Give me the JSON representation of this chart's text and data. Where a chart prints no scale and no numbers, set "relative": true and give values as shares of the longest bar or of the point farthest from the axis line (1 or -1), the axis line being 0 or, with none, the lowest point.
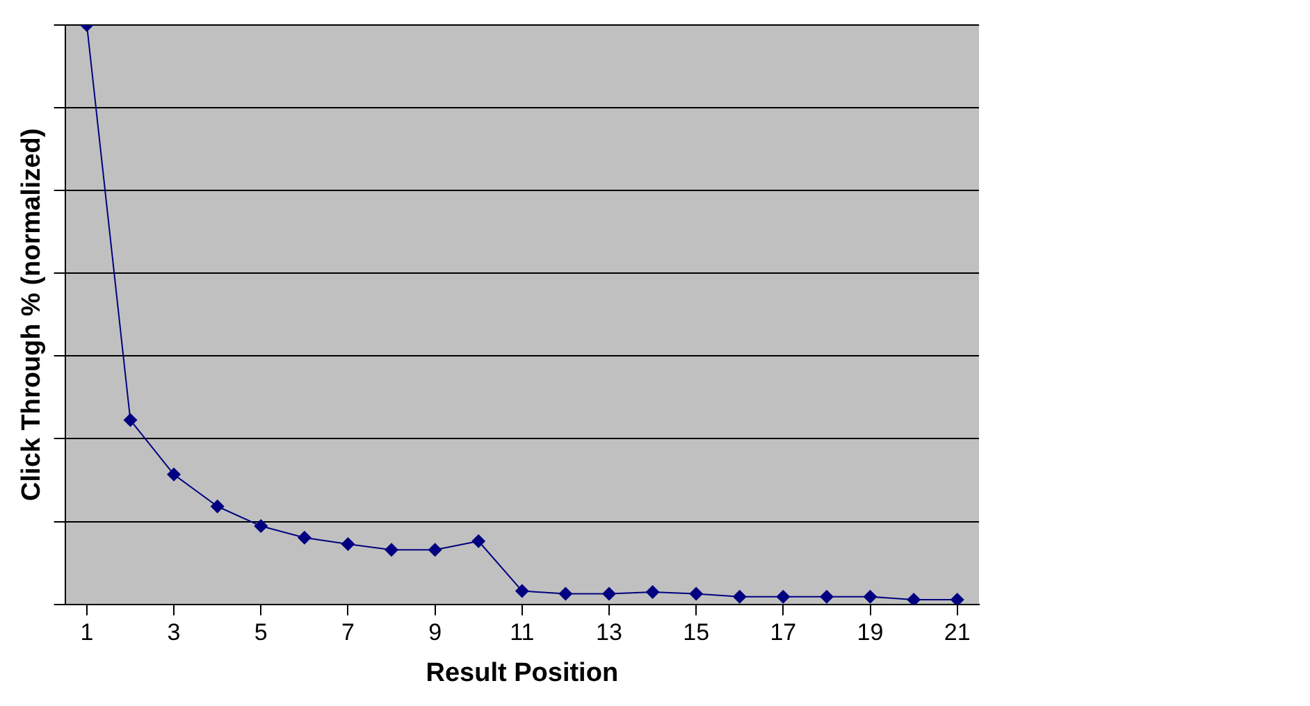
{
  "chart_data": {
    "type": "line",
    "xlabel": "Result Position",
    "ylabel": "Click Through % (normalized)",
    "relative": true,
    "grid": "y",
    "marker": "diamond",
    "line_style": "solid",
    "x": [
      1,
      2,
      3,
      4,
      5,
      6,
      7,
      8,
      9,
      10,
      11,
      12,
      13,
      14,
      15,
      16,
      17,
      18,
      19,
      20,
      21
    ],
    "xlim": [
      0.5,
      21.5
    ],
    "xticks": [
      1,
      3,
      5,
      7,
      9,
      11,
      13,
      15,
      17,
      19,
      21
    ],
    "series": [
      {
        "color": "#000080",
        "values": [
          1,
          0.318,
          0.224,
          0.169,
          0.135,
          0.115,
          0.104,
          0.094,
          0.094,
          0.109,
          0.023,
          0.018,
          0.018,
          0.021,
          0.018,
          0.013,
          0.013,
          0.013,
          0.013,
          0.008,
          0.008
        ]
      }
    ]
  }
}
